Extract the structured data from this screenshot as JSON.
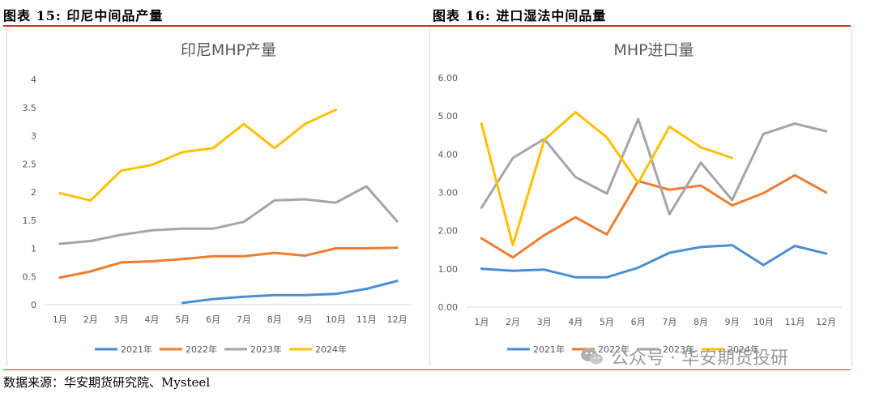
{
  "figure1_title": "图表 15: 印尼中间品产量",
  "figure2_title": "图表 16: 进口湿法中间品量",
  "source": "数据来源：华安期货研究院、Mysteel",
  "watermark": "公众号 · 华安期货投研",
  "colors": {
    "2021年": "#4a8fd3",
    "2022年": "#ed7d31",
    "2023年": "#a5a5a5",
    "2024年": "#ffc000",
    "rule": "#c0392b"
  },
  "chart_data": [
    {
      "type": "line",
      "title": "印尼MHP产量",
      "categories": [
        "1月",
        "2月",
        "3月",
        "4月",
        "5月",
        "6月",
        "7月",
        "8月",
        "9月",
        "10月",
        "11月",
        "12月"
      ],
      "ylim": [
        0,
        4
      ],
      "yticks": [
        "0",
        "0.5",
        "1",
        "1.5",
        "2",
        "2.5",
        "3",
        "3.5",
        "4"
      ],
      "series": [
        {
          "name": "2021年",
          "values": [
            null,
            null,
            null,
            null,
            0.03,
            0.1,
            0.14,
            0.17,
            0.17,
            0.19,
            0.28,
            0.42
          ]
        },
        {
          "name": "2022年",
          "values": [
            0.48,
            0.59,
            0.75,
            0.77,
            0.81,
            0.86,
            0.86,
            0.92,
            0.87,
            1.0,
            1.0,
            1.01
          ]
        },
        {
          "name": "2023年",
          "values": [
            1.08,
            1.13,
            1.24,
            1.32,
            1.35,
            1.35,
            1.47,
            1.85,
            1.87,
            1.81,
            2.1,
            1.48
          ]
        },
        {
          "name": "2024年",
          "values": [
            1.98,
            1.85,
            2.38,
            2.48,
            2.71,
            2.78,
            3.21,
            2.78,
            3.21,
            3.46,
            null,
            null
          ]
        }
      ]
    },
    {
      "type": "line",
      "title": "MHP进口量",
      "categories": [
        "1月",
        "2月",
        "3月",
        "4月",
        "5月",
        "6月",
        "7月",
        "8月",
        "9月",
        "10月",
        "11月",
        "12月"
      ],
      "ylim": [
        0,
        6
      ],
      "yticks": [
        "0.00",
        "1.00",
        "2.00",
        "3.00",
        "4.00",
        "5.00",
        "6.00"
      ],
      "series": [
        {
          "name": "2021年",
          "values": [
            1.0,
            0.95,
            0.98,
            0.78,
            0.78,
            1.03,
            1.42,
            1.57,
            1.62,
            1.1,
            1.6,
            1.4
          ]
        },
        {
          "name": "2022年",
          "values": [
            1.8,
            1.3,
            1.88,
            2.35,
            1.9,
            3.3,
            3.07,
            3.18,
            2.66,
            2.98,
            3.45,
            3.0
          ]
        },
        {
          "name": "2023年",
          "values": [
            2.6,
            3.9,
            4.4,
            3.4,
            2.97,
            4.92,
            2.43,
            3.78,
            2.8,
            4.53,
            4.8,
            4.6
          ]
        },
        {
          "name": "2024年",
          "values": [
            4.8,
            1.62,
            4.37,
            5.1,
            4.44,
            3.25,
            4.72,
            4.18,
            3.9,
            null,
            null,
            null
          ]
        }
      ]
    }
  ]
}
